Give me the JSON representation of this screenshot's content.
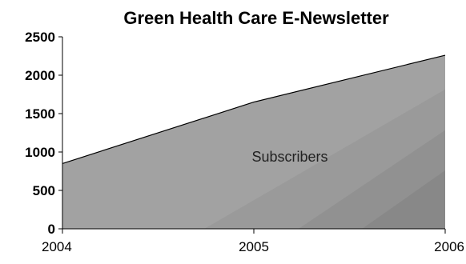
{
  "chart_data": {
    "type": "area",
    "title": "Green Health Care E-Newsletter",
    "xlabel": "",
    "ylabel": "",
    "categories": [
      "2004",
      "2005",
      "2006"
    ],
    "series": [
      {
        "name": "Subscribers",
        "values": [
          850,
          1650,
          2260
        ]
      }
    ],
    "ylim": [
      0,
      2500
    ],
    "yticks": [
      0,
      500,
      1000,
      1500,
      2000,
      2500
    ],
    "ytick_labels": [
      "0",
      "500",
      "1000",
      "1500",
      "2000",
      "2500"
    ],
    "annotations": [
      {
        "text": "Subscribers",
        "x": "2005",
        "y": 950
      }
    ],
    "grid": false,
    "legend": "none",
    "colors": {
      "area_fill": "#aaaaaa",
      "area_line": "#000000",
      "shade_bands": [
        "#a2a2a2",
        "#9a9a9a",
        "#919191",
        "#888888"
      ],
      "axis": "#000000"
    }
  }
}
